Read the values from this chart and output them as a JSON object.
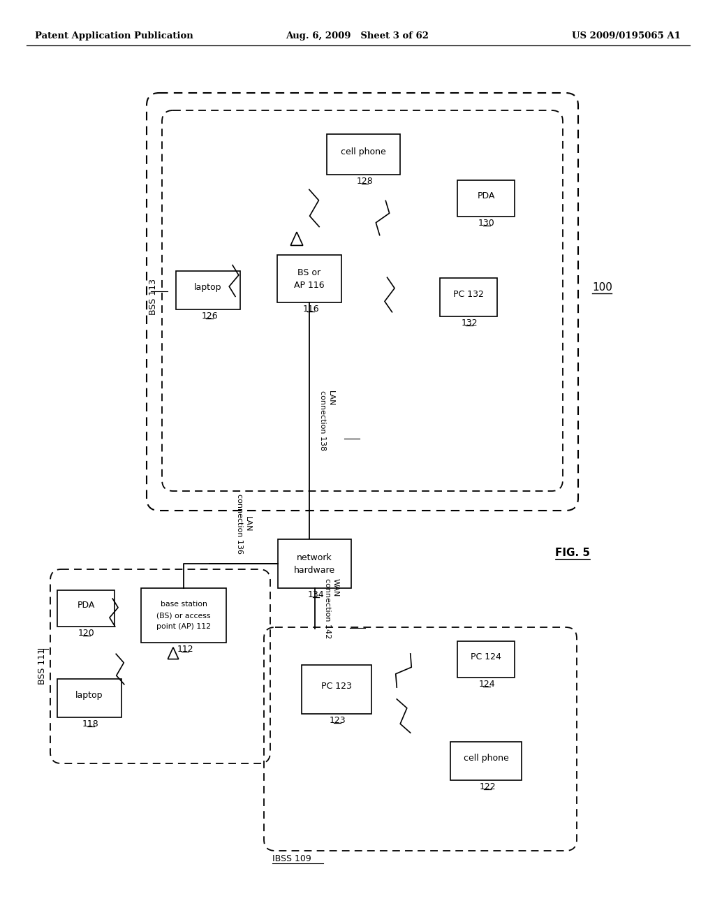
{
  "bg_color": "#ffffff",
  "header_left": "Patent Application Publication",
  "header_mid": "Aug. 6, 2009   Sheet 3 of 62",
  "header_right": "US 2009/0195065 A1",
  "fig_label": "FIG. 5",
  "page_width": 10.24,
  "page_height": 13.2,
  "dpi": 100
}
